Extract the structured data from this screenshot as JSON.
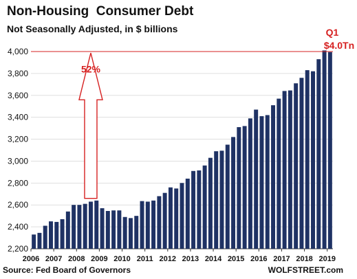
{
  "title": "Non-Housing  Consumer Debt",
  "subtitle": "Not Seasonally Adjusted, in $ billions",
  "source": "Source: Fed Board of Governors",
  "brand": "WOLFSTREET.com",
  "colors": {
    "bar": "#1f3264",
    "annotation": "#d62020",
    "grid": "#cccccc"
  },
  "chart_data": {
    "type": "bar",
    "ylim": [
      2200,
      4000
    ],
    "yticks": [
      2200,
      2400,
      2600,
      2800,
      3000,
      3200,
      3400,
      3600,
      3800,
      4000
    ],
    "ytick_labels": [
      "2,200",
      "2,400",
      "2,600",
      "2,800",
      "3,000",
      "3,200",
      "3,400",
      "3,600",
      "3,800",
      "4,000"
    ],
    "xtick_labels": [
      "2006",
      "2007",
      "2008",
      "2009",
      "2010",
      "2011",
      "2012",
      "2013",
      "2014",
      "2015",
      "2016",
      "2017",
      "2018",
      "2019"
    ],
    "categories": [
      "2006 Q1",
      "2006 Q2",
      "2006 Q3",
      "2006 Q4",
      "2007 Q1",
      "2007 Q2",
      "2007 Q3",
      "2007 Q4",
      "2008 Q1",
      "2008 Q2",
      "2008 Q3",
      "2008 Q4",
      "2009 Q1",
      "2009 Q2",
      "2009 Q3",
      "2009 Q4",
      "2010 Q1",
      "2010 Q2",
      "2010 Q3",
      "2010 Q4",
      "2011 Q1",
      "2011 Q2",
      "2011 Q3",
      "2011 Q4",
      "2012 Q1",
      "2012 Q2",
      "2012 Q3",
      "2012 Q4",
      "2013 Q1",
      "2013 Q2",
      "2013 Q3",
      "2013 Q4",
      "2014 Q1",
      "2014 Q2",
      "2014 Q3",
      "2014 Q4",
      "2015 Q1",
      "2015 Q2",
      "2015 Q3",
      "2015 Q4",
      "2016 Q1",
      "2016 Q2",
      "2016 Q3",
      "2016 Q4",
      "2017 Q1",
      "2017 Q2",
      "2017 Q3",
      "2017 Q4",
      "2018 Q1",
      "2018 Q2",
      "2018 Q3",
      "2018 Q4",
      "2019 Q1"
    ],
    "values": [
      2330,
      2345,
      2410,
      2450,
      2445,
      2470,
      2540,
      2600,
      2600,
      2610,
      2630,
      2640,
      2570,
      2545,
      2550,
      2550,
      2490,
      2480,
      2500,
      2635,
      2630,
      2640,
      2680,
      2710,
      2760,
      2750,
      2800,
      2840,
      2910,
      2915,
      2960,
      3030,
      3090,
      3095,
      3150,
      3220,
      3310,
      3320,
      3390,
      3470,
      3410,
      3420,
      3510,
      3570,
      3640,
      3645,
      3710,
      3760,
      3830,
      3820,
      3930,
      4010,
      3995
    ],
    "reference_line": 4000,
    "annotations": {
      "crisis_pct": "52%",
      "latest_period": "Q1",
      "latest_value": "$4.0Tn"
    }
  }
}
